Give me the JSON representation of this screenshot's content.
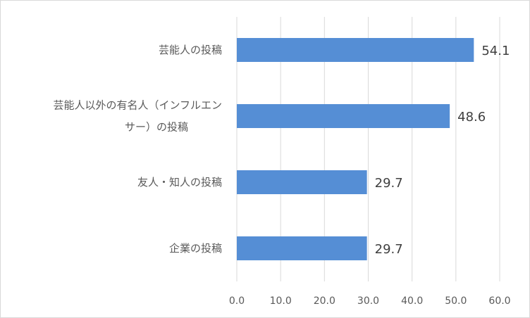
{
  "chart_data": {
    "type": "bar",
    "orientation": "horizontal",
    "title": "",
    "xlabel": "",
    "ylabel": "",
    "categories": [
      [
        "芸能人の投稿"
      ],
      [
        "芸能人以外の有名人（インフルエン",
        "サー）の投稿"
      ],
      [
        "友人・知人の投稿"
      ],
      [
        "企業の投稿"
      ]
    ],
    "values": [
      54.1,
      48.6,
      29.7,
      29.7
    ],
    "value_labels": [
      "54.1",
      "48.6",
      "29.7",
      "29.7"
    ],
    "xlim": [
      0,
      60
    ],
    "ticks": [
      "0.0",
      "10.0",
      "20.0",
      "30.0",
      "40.0",
      "50.0",
      "60.0"
    ],
    "grid": "vertical",
    "legend": "none",
    "bar_color": "#558ED5",
    "grid_color": "#d9d9d9"
  }
}
